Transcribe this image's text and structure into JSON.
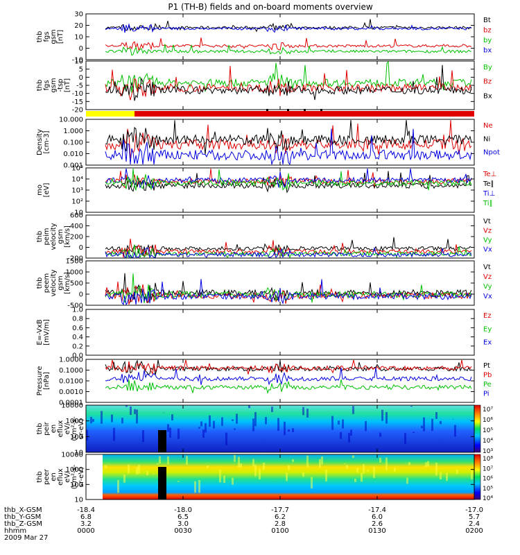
{
  "title": "P1 (TH-B) fields and on-board moments overview",
  "date_label": "2009 Mar 27",
  "colors": {
    "black": "#000000",
    "red": "#e00000",
    "green": "#00c000",
    "blue": "#0000e0",
    "yellow": "#ffff00"
  },
  "status_bar": {
    "segments": [
      {
        "from": "00:00",
        "to": "00:15",
        "color": "yellow"
      },
      {
        "from": "00:15",
        "to": "02:00",
        "color": "red"
      }
    ]
  },
  "footer": {
    "rows": [
      {
        "label": "thb_X-GSM",
        "values": [
          "-18.4",
          "-18.0",
          "-17.7",
          "-17.4",
          "-17.0"
        ]
      },
      {
        "label": "thb_Y-GSM",
        "values": [
          "6.8",
          "6.5",
          "6.2",
          "6.0",
          "5.7"
        ]
      },
      {
        "label": "thb_Z-GSM",
        "values": [
          "3.2",
          "3.0",
          "2.8",
          "2.6",
          "2.4"
        ]
      },
      {
        "label": "hhmm",
        "values": [
          "0000",
          "0030",
          "0100",
          "0130",
          "0200"
        ]
      }
    ]
  },
  "chart_data": [
    {
      "type": "line",
      "ylabel": [
        "thb",
        "fgs",
        "gsm",
        "[nT]"
      ],
      "yticks": [
        "30",
        "20",
        "10",
        "0",
        "-10"
      ],
      "ylim": [
        -10,
        30
      ],
      "series": [
        {
          "name": "Bt",
          "color": "black",
          "approx_level": 18
        },
        {
          "name": "bz",
          "color": "red",
          "approx_level": 2
        },
        {
          "name": "by",
          "color": "green",
          "approx_level": -4
        },
        {
          "name": "bx",
          "color": "blue",
          "approx_level": 17
        }
      ]
    },
    {
      "type": "line",
      "ylabel": [
        "thb",
        "fgs",
        "gsm",
        "-tsp",
        "[nT]"
      ],
      "yticks": [
        "10",
        "5",
        "0",
        "-5",
        "-10",
        "-15",
        "-20"
      ],
      "ylim": [
        -20,
        10
      ],
      "series": [
        {
          "name": "By",
          "color": "green"
        },
        {
          "name": "Bz",
          "color": "red"
        },
        {
          "name": "Bx",
          "color": "black"
        }
      ]
    },
    {
      "type": "line",
      "ylabel": [
        "Density",
        "[cm-3]"
      ],
      "scale": "log",
      "yticks": [
        "10.000",
        "1.000",
        "0.100",
        "0.010",
        "0.001"
      ],
      "series": [
        {
          "name": "Ne",
          "color": "red"
        },
        {
          "name": "Ni",
          "color": "black"
        },
        {
          "name": "Npot",
          "color": "blue"
        }
      ]
    },
    {
      "type": "line",
      "ylabel": [
        "mo",
        "[eV]"
      ],
      "scale": "log",
      "yticks": [
        "10⁵",
        "10⁴",
        "10³",
        "10²",
        "10"
      ],
      "series": [
        {
          "name": "Te⊥",
          "color": "red"
        },
        {
          "name": "Te∥",
          "color": "black"
        },
        {
          "name": "Ti⊥",
          "color": "blue"
        },
        {
          "name": "Ti∥",
          "color": "green"
        }
      ]
    },
    {
      "type": "line",
      "ylabel": [
        "thb",
        "peim",
        "velocity",
        "gsm",
        "[km/s]"
      ],
      "yticks": [
        "600",
        "400",
        "200",
        "0",
        "-200"
      ],
      "ylim": [
        -200,
        600
      ],
      "series": [
        {
          "name": "Vt",
          "color": "black"
        },
        {
          "name": "Vz",
          "color": "red"
        },
        {
          "name": "Vy",
          "color": "green"
        },
        {
          "name": "Vx",
          "color": "blue"
        }
      ]
    },
    {
      "type": "line",
      "ylabel": [
        "thb",
        "peem",
        "velocity",
        "gsm",
        "[km/s]"
      ],
      "yticks": [
        "1500",
        "1000",
        "500",
        "0",
        "-500"
      ],
      "ylim": [
        -500,
        1500
      ],
      "series": [
        {
          "name": "Vt",
          "color": "black"
        },
        {
          "name": "Vz",
          "color": "red"
        },
        {
          "name": "Vy",
          "color": "green"
        },
        {
          "name": "Vx",
          "color": "blue"
        }
      ]
    },
    {
      "type": "line",
      "ylabel": [
        "E=-VxB",
        "[mV/m]"
      ],
      "yticks": [
        "1.0",
        "0.8",
        "0.6",
        "0.4",
        "0.2",
        "0.0"
      ],
      "ylim": [
        0,
        1
      ],
      "series": [
        {
          "name": "Ez",
          "color": "red"
        },
        {
          "name": "Ey",
          "color": "green"
        },
        {
          "name": "Ex",
          "color": "blue"
        }
      ]
    },
    {
      "type": "line",
      "ylabel": [
        "Pressure",
        "[nPa]"
      ],
      "scale": "log",
      "yticks": [
        "1.0000",
        "0.1000",
        "0.0100",
        "0.0010",
        "0.0001"
      ],
      "series": [
        {
          "name": "Pt",
          "color": "black"
        },
        {
          "name": "Pb",
          "color": "red"
        },
        {
          "name": "Pe",
          "color": "green"
        },
        {
          "name": "Pi",
          "color": "blue"
        }
      ]
    },
    {
      "type": "heatmap",
      "ylabel": [
        "thb",
        "peir",
        "en",
        "eflux",
        "eV/",
        "(cm²-s-",
        "sr-eV)"
      ],
      "scale": "log",
      "yticks": [
        "10000",
        "1000",
        "100",
        "10"
      ],
      "colorbar": [
        "10⁷",
        "10⁶",
        "10⁵",
        "10⁴",
        "10³"
      ]
    },
    {
      "type": "heatmap",
      "ylabel": [
        "thb",
        "peer",
        "en",
        "eflux",
        "eV/",
        "(cm²-s-",
        "sr-eV)"
      ],
      "scale": "log",
      "yticks": [
        "10000",
        "1000",
        "100",
        "10"
      ],
      "colorbar": [
        "10⁸",
        "10⁷",
        "10⁶",
        "10⁵",
        "10⁴"
      ]
    }
  ]
}
